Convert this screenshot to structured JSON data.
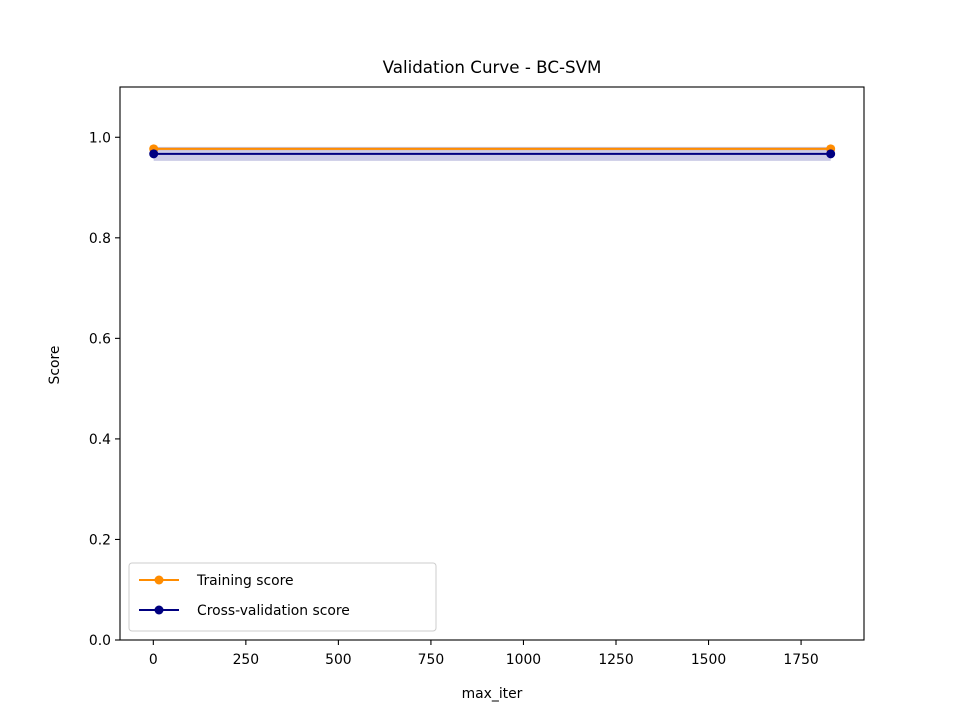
{
  "chart_data": {
    "type": "line",
    "title": "Validation Curve - BC-SVM",
    "xlabel": "max_iter",
    "ylabel": "Score",
    "xlim": [
      -90,
      1920
    ],
    "ylim": [
      0,
      1.1
    ],
    "xticks": [
      0,
      250,
      500,
      750,
      1000,
      1250,
      1500,
      1750
    ],
    "yticks": [
      0.0,
      0.2,
      0.4,
      0.6,
      0.8,
      1.0
    ],
    "xtick_labels": [
      "0",
      "250",
      "500",
      "750",
      "1000",
      "1250",
      "1500",
      "1750"
    ],
    "ytick_labels": [
      "0.0",
      "0.2",
      "0.4",
      "0.6",
      "0.8",
      "1.0"
    ],
    "grid": false,
    "legend_position": "lower-left",
    "series": [
      {
        "name": "Training score",
        "color": "#ff8c00",
        "x": [
          1,
          1830
        ],
        "y": [
          0.977,
          0.977
        ],
        "band_lower": [
          0.974,
          0.974
        ],
        "band_upper": [
          0.98,
          0.98
        ]
      },
      {
        "name": "Cross-validation score",
        "color": "#000080",
        "x": [
          1,
          1830
        ],
        "y": [
          0.967,
          0.967
        ],
        "band_lower": [
          0.953,
          0.953
        ],
        "band_upper": [
          0.981,
          0.981
        ]
      }
    ]
  }
}
